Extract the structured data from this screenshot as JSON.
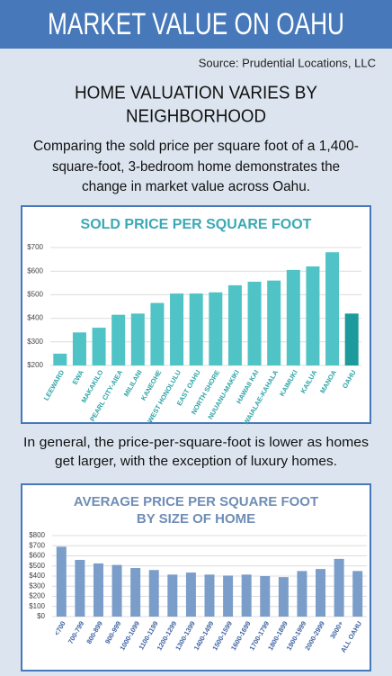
{
  "header": {
    "title": "MARKET VALUE ON OAHU",
    "source": "Source: Prudential Locations, LLC"
  },
  "headline": [
    "HOME VALUATION VARIES BY",
    "NEIGHBORHOOD"
  ],
  "intro": [
    "Comparing the sold price per square foot of a 1,400-",
    "square-foot, 3-bedroom home demonstrates the",
    "change in market value across Oahu."
  ],
  "middle_text": [
    "In general, the price-per-square-foot is lower as homes",
    "get larger, with the exception of luxury homes."
  ],
  "chart_data": [
    {
      "type": "bar",
      "title": [
        "SOLD PRICE PER SQUARE FOOT"
      ],
      "categories": [
        "LEEWARD",
        "EWA",
        "MAKAKILO",
        "PEARL CITY-AIEA",
        "MILILANI",
        "KANEOHE",
        "WEST HONOLULU",
        "EAST OAHU",
        "NORTH SHORE",
        "NUUANU-MAKIKI",
        "HAWAII KAI",
        "WAIALAE-KAHALA",
        "KAIMUKI",
        "KAILUA",
        "MANOA",
        "OAHU"
      ],
      "values": [
        250,
        340,
        360,
        415,
        420,
        465,
        505,
        505,
        510,
        540,
        555,
        560,
        605,
        620,
        680,
        420
      ],
      "colors": [
        "#4fc3c6",
        "#4fc3c6",
        "#4fc3c6",
        "#4fc3c6",
        "#4fc3c6",
        "#4fc3c6",
        "#4fc3c6",
        "#4fc3c6",
        "#4fc3c6",
        "#4fc3c6",
        "#4fc3c6",
        "#4fc3c6",
        "#4fc3c6",
        "#4fc3c6",
        "#4fc3c6",
        "#1c9a9c"
      ],
      "ylim": [
        200,
        700
      ],
      "yticks": [
        {
          "value": 200,
          "label": "$200"
        },
        {
          "value": 300,
          "label": "$300"
        },
        {
          "value": 400,
          "label": "$400"
        },
        {
          "value": 500,
          "label": "$500"
        },
        {
          "value": 600,
          "label": "$600"
        },
        {
          "value": 700,
          "label": "$700"
        }
      ],
      "grid": true
    },
    {
      "type": "bar",
      "title": [
        "AVERAGE PRICE PER SQUARE FOOT",
        "BY SIZE OF HOME"
      ],
      "categories": [
        "<700",
        "700-799",
        "800-899",
        "900-999",
        "1000-1099",
        "1100-1199",
        "1200-1299",
        "1300-1399",
        "1400-1499",
        "1500-1599",
        "1600-1699",
        "1700-1799",
        "1800-1899",
        "1900-1999",
        "2000-2999",
        "3000+",
        "ALL OAHU"
      ],
      "values": [
        690,
        560,
        525,
        510,
        480,
        460,
        415,
        435,
        415,
        405,
        415,
        400,
        390,
        450,
        470,
        570,
        450
      ],
      "colors": [
        "#7b9dc9",
        "#7b9dc9",
        "#7b9dc9",
        "#7b9dc9",
        "#7b9dc9",
        "#7b9dc9",
        "#7b9dc9",
        "#7b9dc9",
        "#7b9dc9",
        "#7b9dc9",
        "#7b9dc9",
        "#7b9dc9",
        "#7b9dc9",
        "#7b9dc9",
        "#7b9dc9",
        "#7b9dc9",
        "#7b9dc9"
      ],
      "ylim": [
        0,
        800
      ],
      "yticks": [
        {
          "value": 0,
          "label": "$0"
        },
        {
          "value": 100,
          "label": "$100"
        },
        {
          "value": 200,
          "label": "$200"
        },
        {
          "value": 300,
          "label": "$300"
        },
        {
          "value": 400,
          "label": "$400"
        },
        {
          "value": 500,
          "label": "$500"
        },
        {
          "value": 600,
          "label": "$600"
        },
        {
          "value": 700,
          "label": "$700"
        },
        {
          "value": 800,
          "label": "$800"
        }
      ],
      "grid": true
    }
  ]
}
